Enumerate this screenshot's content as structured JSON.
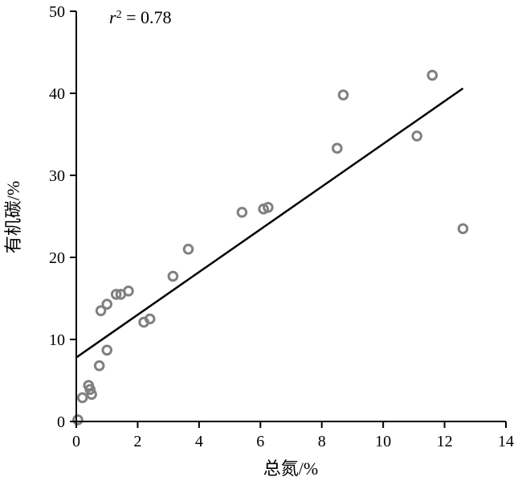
{
  "chart_data": {
    "type": "scatter",
    "xlabel": "总氮/%",
    "ylabel": "有机碳/%",
    "xlim": [
      0,
      14
    ],
    "ylim": [
      0,
      50
    ],
    "xticks": [
      0,
      2,
      4,
      6,
      8,
      10,
      12,
      14
    ],
    "yticks": [
      0,
      10,
      20,
      30,
      40,
      50
    ],
    "grid": false,
    "annotation": {
      "variable": "r",
      "exponent": "2",
      "text": " = 0.78"
    },
    "series": [
      {
        "values": [
          {
            "x": 0.05,
            "y": 0.2
          },
          {
            "x": 0.2,
            "y": 2.9
          },
          {
            "x": 0.5,
            "y": 3.3
          },
          {
            "x": 0.45,
            "y": 3.9
          },
          {
            "x": 0.4,
            "y": 4.4
          },
          {
            "x": 0.75,
            "y": 6.8
          },
          {
            "x": 1.0,
            "y": 8.7
          },
          {
            "x": 0.8,
            "y": 13.5
          },
          {
            "x": 1.0,
            "y": 14.3
          },
          {
            "x": 1.3,
            "y": 15.5
          },
          {
            "x": 1.45,
            "y": 15.5
          },
          {
            "x": 1.7,
            "y": 15.9
          },
          {
            "x": 2.2,
            "y": 12.1
          },
          {
            "x": 2.4,
            "y": 12.5
          },
          {
            "x": 3.15,
            "y": 17.7
          },
          {
            "x": 3.65,
            "y": 21.0
          },
          {
            "x": 5.4,
            "y": 25.5
          },
          {
            "x": 6.1,
            "y": 25.9
          },
          {
            "x": 6.25,
            "y": 26.1
          },
          {
            "x": 8.5,
            "y": 33.3
          },
          {
            "x": 8.7,
            "y": 39.8
          },
          {
            "x": 11.1,
            "y": 34.8
          },
          {
            "x": 11.6,
            "y": 42.2
          },
          {
            "x": 12.6,
            "y": 23.5
          }
        ]
      }
    ],
    "fit_line": {
      "x": [
        0,
        12.6
      ],
      "y": [
        7.8,
        40.6
      ]
    }
  }
}
